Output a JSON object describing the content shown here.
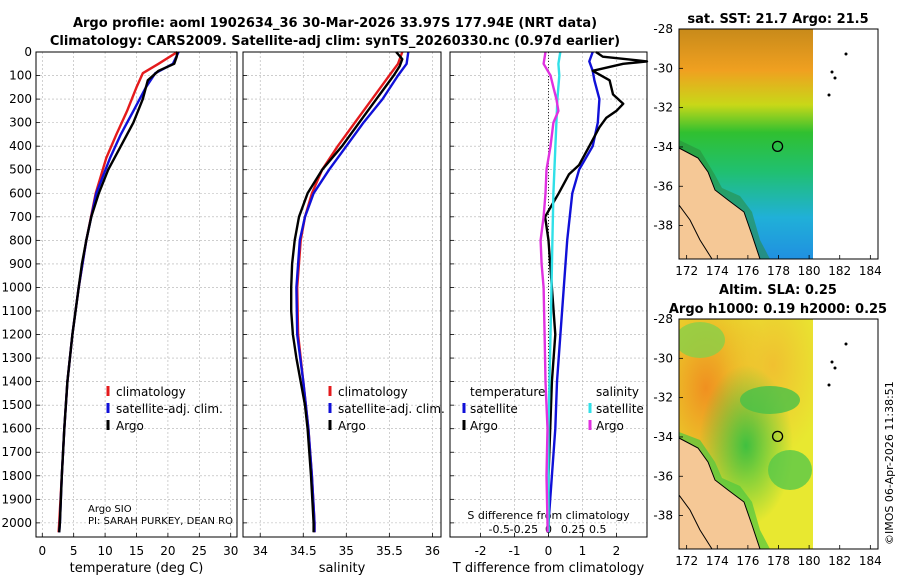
{
  "title_line1": "Argo profile: aoml 1902634_36 30-Mar-2026 33.97S 177.94E (NRT data)",
  "title_line2": "Climatology: CARS2009. Satellite-adj clim: synTS_20260330.nc (0.97d earlier)",
  "colors": {
    "climatology": "#e41a1c",
    "satellite": "#1010d8",
    "argo": "#000000",
    "sat_salinity": "#30e0e8",
    "argo_salinity": "#e030e0",
    "land": "#f5c896",
    "grid": "#b0b0b0"
  },
  "chart_data": [
    {
      "type": "line",
      "panel": "temperature",
      "xlabel": "temperature (deg C)",
      "ylabel": "",
      "xlim": [
        -1,
        31
      ],
      "ylim": [
        2060,
        0
      ],
      "xticks": [
        "0",
        "5",
        "10",
        "15",
        "20",
        "25",
        "30"
      ],
      "yticks": [
        "0",
        "100",
        "200",
        "300",
        "400",
        "500",
        "600",
        "700",
        "800",
        "900",
        "1000",
        "1100",
        "1200",
        "1300",
        "1400",
        "1500",
        "1600",
        "1700",
        "1800",
        "1900",
        "2000"
      ],
      "legend": [
        "climatology",
        "satellite-adj. clim.",
        "Argo"
      ],
      "legend_position": "lower-center",
      "series": [
        {
          "name": "climatology",
          "depth": [
            0,
            50,
            90,
            150,
            250,
            350,
            450,
            600,
            800,
            1000,
            1200,
            1400,
            1600,
            1800,
            2000,
            2040
          ],
          "values": [
            21.5,
            18.5,
            16.0,
            15.0,
            13.5,
            11.8,
            10.2,
            8.5,
            7.0,
            5.8,
            4.8,
            4.0,
            3.5,
            3.1,
            2.7,
            2.6
          ]
        },
        {
          "name": "satellite-adj. clim.",
          "depth": [
            0,
            50,
            90,
            150,
            250,
            350,
            450,
            600,
            800,
            1000,
            1200,
            1400,
            1600,
            1800,
            2000,
            2040
          ],
          "values": [
            21.7,
            20.8,
            18.0,
            16.5,
            14.5,
            12.5,
            10.8,
            8.6,
            7.0,
            5.8,
            4.8,
            4.0,
            3.5,
            3.1,
            2.8,
            2.7
          ]
        },
        {
          "name": "Argo",
          "depth": [
            0,
            20,
            50,
            80,
            120,
            200,
            300,
            400,
            500,
            600,
            700,
            800,
            900,
            1000,
            1200,
            1400,
            1600,
            1800,
            2000,
            2040
          ],
          "values": [
            21.5,
            21.4,
            21.0,
            18.5,
            16.8,
            16.0,
            14.5,
            12.5,
            10.5,
            9.0,
            7.8,
            7.0,
            6.3,
            5.8,
            4.8,
            4.0,
            3.5,
            3.1,
            2.8,
            2.7
          ]
        }
      ]
    },
    {
      "type": "line",
      "panel": "salinity",
      "xlabel": "salinity",
      "xlim": [
        33.8,
        36.1
      ],
      "ylim": [
        2060,
        0
      ],
      "xticks": [
        "34",
        "34.5",
        "35",
        "35.5",
        "36"
      ],
      "legend": [
        "climatology",
        "satellite-adj. clim.",
        "Argo"
      ],
      "legend_position": "lower-center",
      "series": [
        {
          "name": "climatology",
          "depth": [
            0,
            50,
            100,
            200,
            300,
            400,
            500,
            600,
            700,
            800,
            1000,
            1200,
            1400,
            1600,
            1800,
            2000,
            2040
          ],
          "values": [
            35.65,
            35.6,
            35.5,
            35.3,
            35.1,
            34.9,
            34.72,
            34.6,
            34.52,
            34.47,
            34.43,
            34.44,
            34.5,
            34.56,
            34.6,
            34.63,
            34.63
          ]
        },
        {
          "name": "satellite-adj. clim.",
          "depth": [
            0,
            50,
            100,
            200,
            300,
            400,
            500,
            600,
            700,
            800,
            1000,
            1200,
            1400,
            1600,
            1800,
            2000,
            2040
          ],
          "values": [
            35.72,
            35.7,
            35.6,
            35.42,
            35.2,
            35.0,
            34.8,
            34.62,
            34.52,
            34.46,
            34.42,
            34.43,
            34.5,
            34.56,
            34.6,
            34.63,
            34.63
          ]
        },
        {
          "name": "Argo",
          "depth": [
            0,
            30,
            60,
            100,
            200,
            300,
            400,
            500,
            600,
            700,
            800,
            900,
            1000,
            1100,
            1200,
            1300,
            1400,
            1500,
            1600,
            1800,
            2000,
            2040
          ],
          "values": [
            35.58,
            35.65,
            35.62,
            35.55,
            35.35,
            35.15,
            34.95,
            34.72,
            34.55,
            34.45,
            34.4,
            34.37,
            34.36,
            34.36,
            34.38,
            34.42,
            34.47,
            34.52,
            34.55,
            34.59,
            34.62,
            34.62
          ]
        }
      ]
    },
    {
      "type": "line",
      "panel": "difference",
      "xlabel": "T difference from climatology",
      "xlabel_top": "S difference from climatology",
      "xlim": [
        -2.9,
        2.9
      ],
      "ylim": [
        2060,
        0
      ],
      "xticks": [
        "-2",
        "-1",
        "0",
        "1",
        "2"
      ],
      "xticks_top": [
        "-0.5",
        "-0.25",
        "0",
        "0.25",
        "0.5"
      ],
      "legend_left_title": "temperature",
      "legend_right_title": "salinity",
      "legend_left": [
        "satellite",
        "Argo"
      ],
      "legend_right": [
        "satellite",
        "Argo"
      ],
      "series": [
        {
          "name": "temperature satellite",
          "depth": [
            0,
            40,
            80,
            120,
            200,
            300,
            400,
            500,
            600,
            800,
            1000,
            1200,
            1400,
            1600,
            1800,
            2000,
            2040
          ],
          "values": [
            1.3,
            1.2,
            1.3,
            1.35,
            1.5,
            1.45,
            1.3,
            0.9,
            0.7,
            0.55,
            0.45,
            0.35,
            0.25,
            0.2,
            0.1,
            0.0,
            0.0
          ]
        },
        {
          "name": "temperature Argo",
          "depth": [
            0,
            20,
            40,
            50,
            80,
            120,
            180,
            220,
            250,
            280,
            320,
            400,
            480,
            520,
            600,
            650,
            700,
            800,
            1000,
            1200,
            1400,
            1600,
            1800,
            2000,
            2040
          ],
          "values": [
            1.4,
            1.6,
            2.9,
            2.2,
            1.3,
            1.8,
            1.9,
            2.2,
            2.0,
            1.7,
            1.5,
            1.2,
            0.9,
            0.6,
            0.3,
            0.1,
            -0.1,
            0.0,
            0.1,
            0.2,
            0.1,
            0.05,
            0.0,
            0.0,
            0.0
          ]
        },
        {
          "name": "salinity satellite",
          "depth": [
            0,
            50,
            100,
            200,
            300,
            400,
            500,
            600,
            800,
            1000,
            1200,
            1400,
            1600,
            1800,
            2000,
            2040
          ],
          "values": [
            0.12,
            0.1,
            0.11,
            0.09,
            0.08,
            0.07,
            0.06,
            0.05,
            0.04,
            0.03,
            0.02,
            0.01,
            0.0,
            0.0,
            0.0,
            0.0
          ]
        },
        {
          "name": "salinity Argo",
          "depth": [
            0,
            50,
            100,
            150,
            200,
            250,
            300,
            400,
            500,
            600,
            700,
            800,
            900,
            1000,
            1200,
            1400,
            1600,
            1800,
            2000,
            2040
          ],
          "values": [
            -0.03,
            -0.05,
            0.02,
            0.05,
            0.08,
            0.1,
            0.05,
            0.02,
            -0.02,
            -0.03,
            -0.05,
            -0.08,
            -0.07,
            -0.05,
            -0.04,
            -0.03,
            -0.01,
            -0.02,
            -0.01,
            -0.01
          ]
        }
      ]
    }
  ],
  "left_note_line1": "Argo SIO",
  "left_note_line2": "PI: SARAH PURKEY, DEAN RO",
  "maps": [
    {
      "title": "sat. SST: 21.7 Argo: 21.5",
      "xticks": [
        "172",
        "174",
        "176",
        "178",
        "180",
        "182",
        "184"
      ],
      "yticks": [
        "-28",
        "-30",
        "-32",
        "-34",
        "-36",
        "-38"
      ],
      "xlim": [
        171.5,
        184.5
      ],
      "ylim": [
        -39.7,
        -28
      ],
      "float_lon": 177.94,
      "float_lat": -33.97
    },
    {
      "title_line1": "Altim. SLA: 0.25",
      "title_line2": "Argo h1000: 0.19 h2000: 0.25",
      "xticks": [
        "172",
        "174",
        "176",
        "178",
        "180",
        "182",
        "184"
      ],
      "yticks": [
        "-28",
        "-30",
        "-32",
        "-34",
        "-36",
        "-38"
      ],
      "xlim": [
        171.5,
        184.5
      ],
      "ylim": [
        -39.7,
        -28
      ],
      "float_lon": 177.94,
      "float_lat": -33.97
    }
  ],
  "credit": "©IMOS 06-Apr-2026 11:38:51"
}
